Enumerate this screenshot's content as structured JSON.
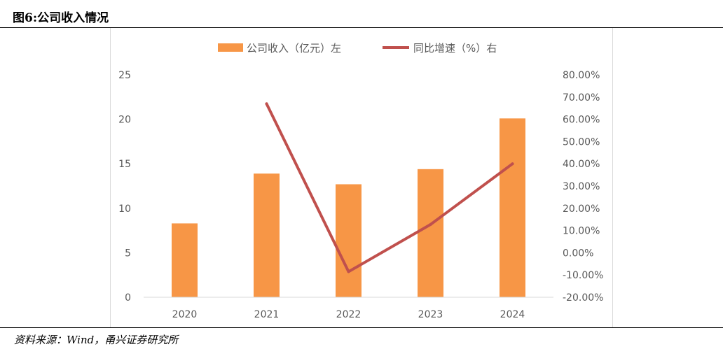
{
  "figure": {
    "title": "图6:公司收入情况",
    "source": "资料来源：Wind，甬兴证券研究所"
  },
  "colors": {
    "bar": "#F79646",
    "line": "#C0504D",
    "axis_text": "#595959",
    "axis_line": "#d9d9d9"
  },
  "chart_data": {
    "type": "bar",
    "categories": [
      "2020",
      "2021",
      "2022",
      "2023",
      "2024"
    ],
    "series": [
      {
        "name": "公司收入（亿元）左",
        "type": "bar",
        "axis": "left",
        "values": [
          8.3,
          13.9,
          12.7,
          14.4,
          20.1
        ]
      },
      {
        "name": "同比增速（%）右",
        "type": "line",
        "axis": "right",
        "values": [
          null,
          67.0,
          -8.5,
          12.7,
          40.0
        ]
      }
    ],
    "y_left": {
      "ylim": [
        0,
        25
      ],
      "ticks": [
        "0",
        "5",
        "10",
        "15",
        "20",
        "25"
      ]
    },
    "y_right": {
      "ylim": [
        -20,
        80
      ],
      "ticks": [
        "-20.00%",
        "-10.00%",
        "0.00%",
        "10.00%",
        "20.00%",
        "30.00%",
        "40.00%",
        "50.00%",
        "60.00%",
        "70.00%",
        "80.00%"
      ]
    },
    "legend_position": "top",
    "grid": false
  }
}
